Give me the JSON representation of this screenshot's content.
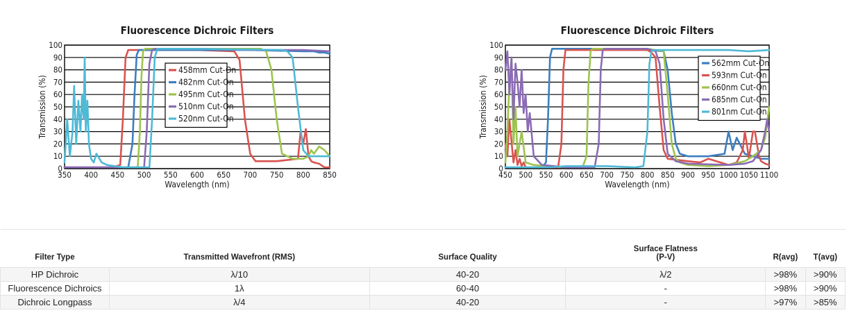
{
  "chart_data": [
    {
      "type": "line",
      "title": "Fluorescence Dichroic Filters",
      "xlabel": "Wavelength (nm)",
      "ylabel": "Transmission (%)",
      "xlim": [
        350,
        850
      ],
      "ylim": [
        0,
        100
      ],
      "xticks": [
        350,
        400,
        450,
        500,
        550,
        600,
        650,
        700,
        750,
        800,
        850
      ],
      "yticks": [
        0,
        10,
        20,
        30,
        40,
        50,
        60,
        70,
        80,
        90,
        100
      ],
      "legend_position": "center",
      "series": [
        {
          "name": "458mm Cut-On",
          "color": "#d9534f",
          "x": [
            350,
            440,
            455,
            460,
            465,
            470,
            500,
            600,
            670,
            680,
            690,
            700,
            710,
            750,
            790,
            795,
            800,
            805,
            810,
            815,
            820,
            830,
            840,
            850
          ],
          "y": [
            1,
            1,
            3,
            40,
            90,
            96,
            96,
            96,
            95,
            88,
            40,
            12,
            6,
            6,
            8,
            30,
            20,
            32,
            10,
            6,
            5,
            4,
            1,
            1
          ]
        },
        {
          "name": "482nm Cut-On",
          "color": "#3c7fc0",
          "x": [
            350,
            470,
            478,
            482,
            486,
            490,
            500,
            600,
            700,
            800,
            820,
            830,
            840,
            850
          ],
          "y": [
            1,
            1,
            20,
            60,
            92,
            96,
            96,
            96,
            96,
            95,
            95,
            94,
            94,
            93
          ]
        },
        {
          "name": "495nm Cut-On",
          "color": "#9dc44f",
          "x": [
            350,
            488,
            492,
            495,
            498,
            502,
            510,
            600,
            720,
            730,
            740,
            750,
            760,
            780,
            800,
            810,
            815,
            820,
            830,
            840,
            850
          ],
          "y": [
            1,
            1,
            30,
            75,
            95,
            97,
            97,
            97,
            97,
            95,
            80,
            40,
            12,
            8,
            8,
            10,
            15,
            12,
            18,
            15,
            10
          ]
        },
        {
          "name": "510nm Cut-On",
          "color": "#8b6bb5",
          "x": [
            350,
            500,
            505,
            510,
            515,
            520,
            600,
            700,
            800,
            850
          ],
          "y": [
            1,
            1,
            30,
            85,
            96,
            97,
            97,
            96,
            96,
            95
          ]
        },
        {
          "name": "520nm Cut-On",
          "color": "#4dbad6",
          "x": [
            350,
            355,
            360,
            365,
            368,
            372,
            376,
            380,
            383,
            386,
            388,
            390,
            393,
            396,
            400,
            405,
            410,
            420,
            430,
            460,
            510,
            515,
            520,
            525,
            530,
            600,
            760,
            770,
            780,
            790,
            800,
            810,
            830,
            850
          ],
          "y": [
            5,
            40,
            10,
            30,
            67,
            20,
            55,
            30,
            60,
            40,
            90,
            30,
            55,
            20,
            8,
            5,
            12,
            5,
            3,
            1,
            1,
            40,
            90,
            97,
            97,
            97,
            96,
            95,
            90,
            50,
            15,
            10,
            10,
            10
          ]
        }
      ]
    },
    {
      "type": "line",
      "title": "Fluorescence Dichroic Filters",
      "xlabel": "Wavelength (nm)",
      "ylabel": "Transmission (%)",
      "xlim": [
        450,
        1100
      ],
      "ylim": [
        0,
        100
      ],
      "xticks": [
        450,
        500,
        550,
        600,
        650,
        700,
        750,
        800,
        850,
        900,
        950,
        1000,
        1050,
        1100
      ],
      "yticks": [
        0,
        10,
        20,
        30,
        40,
        50,
        60,
        70,
        80,
        90,
        100
      ],
      "legend_position": "top-right",
      "series": [
        {
          "name": "562mm Cut-On",
          "color": "#3c7fc0",
          "x": [
            450,
            540,
            550,
            555,
            560,
            565,
            570,
            700,
            800,
            840,
            850,
            860,
            870,
            880,
            900,
            950,
            990,
            1000,
            1010,
            1020,
            1040,
            1060,
            1080,
            1100
          ],
          "y": [
            1,
            1,
            5,
            40,
            90,
            97,
            97,
            97,
            96,
            95,
            80,
            45,
            20,
            12,
            10,
            10,
            12,
            30,
            15,
            25,
            12,
            10,
            8,
            8
          ]
        },
        {
          "name": "593nm Cut-On",
          "color": "#d9534f",
          "x": [
            450,
            455,
            460,
            470,
            475,
            480,
            485,
            490,
            495,
            500,
            580,
            588,
            593,
            598,
            605,
            700,
            800,
            810,
            820,
            830,
            840,
            850,
            900,
            930,
            950,
            980,
            1000,
            1020,
            1035,
            1040,
            1045,
            1050,
            1060,
            1065,
            1075,
            1080,
            1090,
            1100
          ],
          "y": [
            20,
            10,
            40,
            5,
            15,
            3,
            8,
            2,
            5,
            1,
            1,
            20,
            80,
            96,
            96,
            96,
            96,
            94,
            90,
            50,
            15,
            8,
            6,
            5,
            8,
            5,
            3,
            5,
            15,
            30,
            20,
            8,
            30,
            30,
            10,
            6,
            4,
            3
          ]
        },
        {
          "name": "660nm Cut-On",
          "color": "#9dc44f",
          "x": [
            450,
            455,
            460,
            465,
            470,
            475,
            480,
            490,
            500,
            520,
            550,
            600,
            640,
            650,
            655,
            660,
            665,
            670,
            700,
            800,
            840,
            850,
            860,
            870,
            880,
            900,
            950,
            1000,
            1040,
            1060,
            1080,
            1090,
            1100
          ],
          "y": [
            5,
            30,
            70,
            90,
            20,
            50,
            10,
            30,
            5,
            3,
            2,
            1,
            1,
            10,
            70,
            95,
            97,
            97,
            97,
            97,
            95,
            60,
            20,
            8,
            5,
            3,
            2,
            3,
            6,
            10,
            15,
            25,
            50
          ]
        },
        {
          "name": "685nm Cut-On",
          "color": "#8b6bb5",
          "x": [
            450,
            455,
            460,
            465,
            470,
            475,
            480,
            485,
            490,
            495,
            500,
            505,
            510,
            520,
            540,
            600,
            670,
            680,
            685,
            690,
            695,
            700,
            800,
            820,
            830,
            840,
            850,
            870,
            900,
            1000,
            1040,
            1060,
            1080,
            1090,
            1095,
            1100
          ],
          "y": [
            80,
            95,
            60,
            90,
            40,
            85,
            70,
            50,
            80,
            45,
            60,
            30,
            45,
            10,
            3,
            1,
            1,
            20,
            80,
            96,
            97,
            97,
            97,
            95,
            85,
            40,
            12,
            6,
            4,
            3,
            4,
            6,
            15,
            30,
            40,
            30
          ]
        },
        {
          "name": "801nm Cut-On",
          "color": "#4dbad6",
          "x": [
            450,
            500,
            560,
            600,
            650,
            700,
            770,
            790,
            800,
            805,
            810,
            815,
            830,
            900,
            1000,
            1050,
            1100
          ],
          "y": [
            1,
            1,
            1,
            2,
            2,
            2,
            1,
            2,
            30,
            85,
            95,
            96,
            96,
            96,
            96,
            95,
            96
          ]
        }
      ]
    }
  ],
  "specs_table": {
    "headers": {
      "filter_type": "Filter Type",
      "wavefront": "Transmitted Wavefront (RMS)",
      "surface_quality": "Surface Quality",
      "flatness_line1": "Surface Flatness",
      "flatness_line2": "(P-V)",
      "r_avg": "R(avg)",
      "t_avg": "T(avg)"
    },
    "rows": [
      {
        "filter_type": "HP Dichroic",
        "wavefront": "λ/10",
        "surface_quality": "40-20",
        "flatness": "λ/2",
        "r_avg": ">98%",
        "t_avg": ">90%"
      },
      {
        "filter_type": "Fluorescence Dichroics",
        "wavefront": "1λ",
        "surface_quality": "60-40",
        "flatness": "-",
        "r_avg": ">98%",
        "t_avg": ">90%"
      },
      {
        "filter_type": "Dichroic Longpass",
        "wavefront": "λ/4",
        "surface_quality": "40-20",
        "flatness": "-",
        "r_avg": ">97%",
        "t_avg": ">85%"
      }
    ]
  }
}
